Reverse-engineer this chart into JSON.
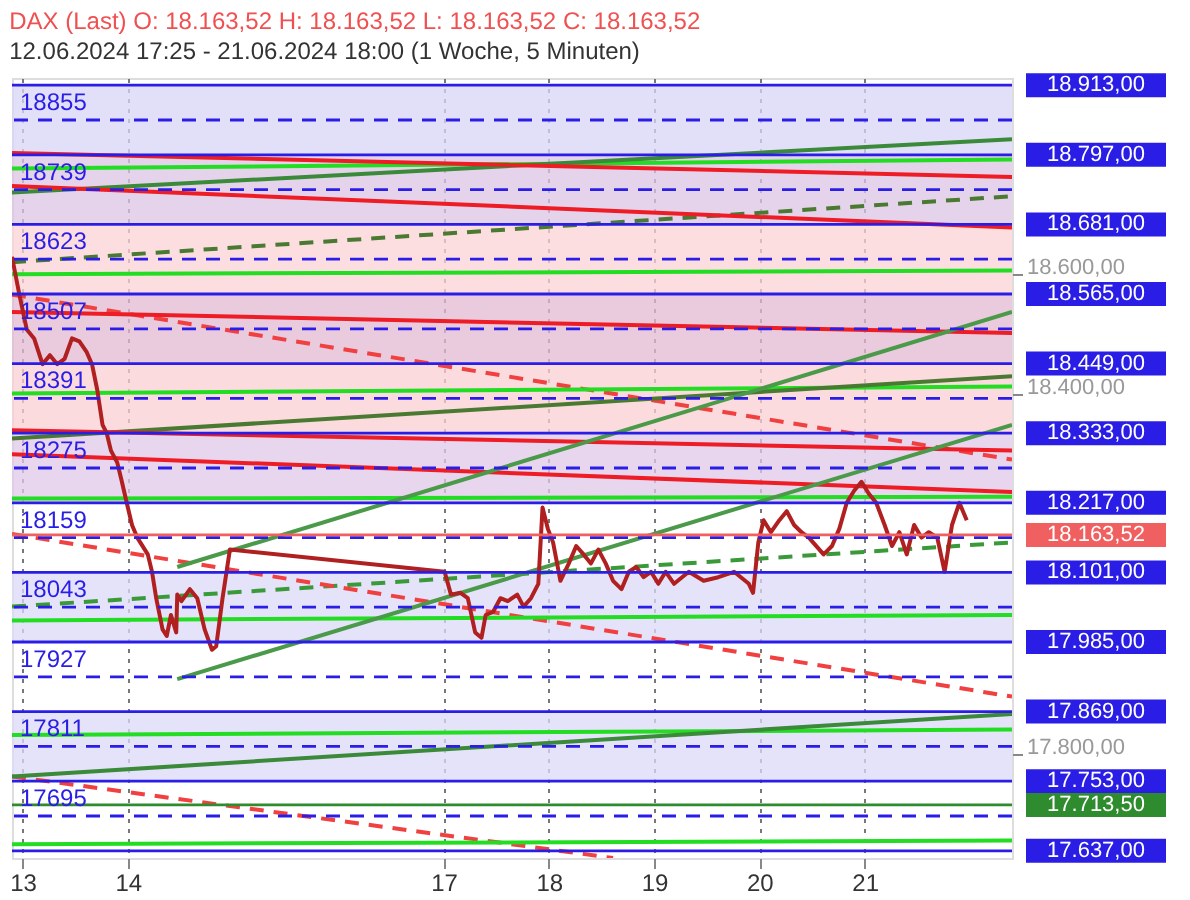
{
  "chart_data": {
    "type": "line",
    "title": "DAX (Last)  O: 18.163,52  H: 18.163,52  L: 18.163,52  C: 18.163,52",
    "subtitle": "12.06.2024 17:25 - 21.06.2024 18:00   (1 Woche, 5 Minuten)",
    "xlim": [
      12.9,
      22.4
    ],
    "xticks": [
      13,
      14,
      17,
      18,
      19,
      20,
      21
    ],
    "ylim": [
      17625,
      18925
    ],
    "yticks": [
      {
        "value": 18600,
        "label": "18.600,00"
      },
      {
        "value": 18400,
        "label": "18.400,00"
      },
      {
        "value": 17800,
        "label": "17.800,00"
      }
    ],
    "grid": "x",
    "bands": [
      {
        "axis": "y",
        "from": 18797,
        "to": 18913,
        "color": "#d8d4f5"
      },
      {
        "axis": "y",
        "from": 18681,
        "to": 18797,
        "color": "#dcc4e6"
      },
      {
        "axis": "y",
        "from": 18565,
        "to": 18681,
        "color": "#fcd3d6"
      },
      {
        "axis": "y",
        "from": 18449,
        "to": 18565,
        "color": "#e3b8d2"
      },
      {
        "axis": "y",
        "from": 18333,
        "to": 18449,
        "color": "#f9cfd2"
      },
      {
        "axis": "y",
        "from": 18217,
        "to": 18333,
        "color": "#e0c8ea"
      },
      {
        "axis": "y",
        "from": 17985,
        "to": 18101,
        "color": "#dcdaf8"
      },
      {
        "axis": "y",
        "from": 17753,
        "to": 17869,
        "color": "#dcdaf8"
      }
    ],
    "ref_lines": [
      {
        "axis": "y",
        "value": 18913,
        "label": "18.913,00",
        "color": "#2a1ee6",
        "line_style": "solid"
      },
      {
        "axis": "y",
        "value": 18855,
        "label": "18855",
        "color": "#2a1ee6",
        "line_style": "dashed"
      },
      {
        "axis": "y",
        "value": 18797,
        "label": "18.797,00",
        "color": "#2a1ee6",
        "line_style": "solid"
      },
      {
        "axis": "y",
        "value": 18739,
        "label": "18739",
        "color": "#2a1ee6",
        "line_style": "dashed"
      },
      {
        "axis": "y",
        "value": 18681,
        "label": "18.681,00",
        "color": "#2a1ee6",
        "line_style": "solid"
      },
      {
        "axis": "y",
        "value": 18623,
        "label": "18623",
        "color": "#2a1ee6",
        "line_style": "dashed"
      },
      {
        "axis": "y",
        "value": 18565,
        "label": "18.565,00",
        "color": "#2a1ee6",
        "line_style": "solid"
      },
      {
        "axis": "y",
        "value": 18507,
        "label": "18507",
        "color": "#2a1ee6",
        "line_style": "dashed"
      },
      {
        "axis": "y",
        "value": 18449,
        "label": "18.449,00",
        "color": "#2a1ee6",
        "line_style": "solid"
      },
      {
        "axis": "y",
        "value": 18391,
        "label": "18391",
        "color": "#2a1ee6",
        "line_style": "dashed"
      },
      {
        "axis": "y",
        "value": 18333,
        "label": "18.333,00",
        "color": "#2a1ee6",
        "line_style": "solid"
      },
      {
        "axis": "y",
        "value": 18275,
        "label": "18275",
        "color": "#2a1ee6",
        "line_style": "dashed"
      },
      {
        "axis": "y",
        "value": 18217,
        "label": "18.217,00",
        "color": "#2a1ee6",
        "line_style": "solid"
      },
      {
        "axis": "y",
        "value": 18163.52,
        "label": "18.163,52",
        "color": "#f06060",
        "line_style": "solid"
      },
      {
        "axis": "y",
        "value": 18159,
        "label": "18159",
        "color": "#2a1ee6",
        "line_style": "dashed"
      },
      {
        "axis": "y",
        "value": 18101,
        "label": "18.101,00",
        "color": "#2a1ee6",
        "line_style": "solid"
      },
      {
        "axis": "y",
        "value": 18043,
        "label": "18043",
        "color": "#2a1ee6",
        "line_style": "dashed"
      },
      {
        "axis": "y",
        "value": 17985,
        "label": "17.985,00",
        "color": "#2a1ee6",
        "line_style": "solid"
      },
      {
        "axis": "y",
        "value": 17927,
        "label": "17927",
        "color": "#2a1ee6",
        "line_style": "dashed"
      },
      {
        "axis": "y",
        "value": 17869,
        "label": "17.869,00",
        "color": "#2a1ee6",
        "line_style": "solid"
      },
      {
        "axis": "y",
        "value": 17811,
        "label": "17811",
        "color": "#2a1ee6",
        "line_style": "dashed"
      },
      {
        "axis": "y",
        "value": 17753,
        "label": "17.753,00",
        "color": "#2a1ee6",
        "line_style": "solid"
      },
      {
        "axis": "y",
        "value": 17713.5,
        "label": "17.713,50",
        "color": "#2e8b2e",
        "line_style": "solid"
      },
      {
        "axis": "y",
        "value": 17695,
        "label": "17695",
        "color": "#2a1ee6",
        "line_style": "dashed"
      },
      {
        "axis": "y",
        "value": 17637,
        "label": "17.637,00",
        "color": "#2a1ee6",
        "line_style": "solid"
      }
    ],
    "series": [
      {
        "color": "#22dd22",
        "x": [
          12.9,
          22.4
        ],
        "values": [
          18774,
          18789
        ]
      },
      {
        "color": "#22dd22",
        "x": [
          12.9,
          22.4
        ],
        "values": [
          18598,
          18604
        ]
      },
      {
        "color": "#22dd22",
        "x": [
          12.9,
          22.4
        ],
        "values": [
          18399,
          18411
        ]
      },
      {
        "color": "#22dd22",
        "x": [
          12.9,
          22.4
        ],
        "values": [
          18224,
          18227
        ]
      },
      {
        "color": "#22dd22",
        "x": [
          12.9,
          22.4
        ],
        "values": [
          18021,
          18030
        ]
      },
      {
        "color": "#22dd22",
        "x": [
          12.9,
          22.4
        ],
        "values": [
          17830,
          17839
        ]
      },
      {
        "color": "#22dd22",
        "x": [
          12.9,
          22.4
        ],
        "values": [
          17648,
          17654
        ]
      },
      {
        "color": "#3a8a3a",
        "x": [
          12.9,
          22.4
        ],
        "values": [
          18734,
          18823
        ]
      },
      {
        "color": "#4a7a32",
        "x": [
          12.9,
          22.4
        ],
        "values": [
          18618,
          18728
        ],
        "line_style": "dashed"
      },
      {
        "color": "#4a7a32",
        "x": [
          12.9,
          22.4
        ],
        "values": [
          18324,
          18428
        ]
      },
      {
        "color": "#3a8a3a",
        "x": [
          12.9,
          22.4
        ],
        "values": [
          17761,
          17865
        ]
      },
      {
        "color": "#3a9a3a",
        "x": [
          12.9,
          22.4
        ],
        "values": [
          18044,
          18151
        ],
        "line_style": "dashed"
      },
      {
        "color": "#ee1c25",
        "x": [
          12.9,
          22.4
        ],
        "values": [
          18800,
          18760
        ]
      },
      {
        "color": "#ee1c25",
        "x": [
          12.9,
          22.4
        ],
        "values": [
          18745,
          18676
        ]
      },
      {
        "color": "#ee1c25",
        "x": [
          12.9,
          22.4
        ],
        "values": [
          18535,
          18500
        ]
      },
      {
        "color": "#ee1c25",
        "x": [
          12.9,
          22.4
        ],
        "values": [
          18338,
          18304
        ]
      },
      {
        "color": "#ee1c25",
        "x": [
          12.9,
          22.4
        ],
        "values": [
          18298,
          18235
        ]
      },
      {
        "color": "#f04040",
        "x": [
          12.9,
          22.4
        ],
        "values": [
          18564,
          18289
        ],
        "line_style": "dashed"
      },
      {
        "color": "#f04040",
        "x": [
          12.9,
          22.4
        ],
        "values": [
          18165,
          17894
        ],
        "line_style": "dashed"
      },
      {
        "color": "#f04040",
        "x": [
          12.9,
          18.61
        ],
        "values": [
          17761,
          17625
        ],
        "line_style": "dashed"
      },
      {
        "color": "#4a9a4a",
        "x": [
          14.47,
          22.4
        ],
        "values": [
          17923,
          18347
        ]
      },
      {
        "color": "#4a9a4a",
        "x": [
          14.47,
          22.4
        ],
        "values": [
          18110,
          18535
        ]
      },
      {
        "color": "#b02020",
        "x": [
          12.9,
          12.97,
          13.04,
          13.11,
          13.19,
          13.26,
          13.33,
          13.4,
          13.47,
          13.54,
          13.61,
          13.66,
          13.71,
          13.76,
          13.8,
          13.84,
          13.9,
          13.94,
          13.99,
          14.04,
          14.09,
          14.19,
          14.23,
          14.27,
          14.33,
          14.37,
          14.41,
          14.46,
          14.47,
          14.51,
          14.59,
          14.66,
          14.73,
          14.8,
          14.84,
          14.9,
          14.97,
          17.01,
          17.07,
          17.16,
          17.23,
          17.3,
          17.36,
          17.4,
          17.47,
          17.54,
          17.61,
          17.7,
          17.76,
          17.83,
          17.9,
          17.94,
          17.99,
          18.04,
          18.11,
          18.19,
          18.26,
          18.33,
          18.4,
          18.47,
          18.54,
          18.61,
          18.69,
          18.76,
          18.83,
          18.9,
          18.97,
          19.04,
          19.11,
          19.19,
          19.33,
          19.47,
          19.61,
          19.76,
          19.9,
          19.94,
          19.99,
          20.04,
          20.11,
          20.19,
          20.26,
          20.33,
          20.4,
          20.47,
          20.61,
          20.69,
          20.76,
          20.83,
          20.9,
          20.97,
          21.04,
          21.11,
          21.19,
          21.26,
          21.33,
          21.4,
          21.47,
          21.54,
          21.61,
          21.69,
          21.76,
          21.83,
          21.9,
          21.97
        ],
        "values": [
          18627,
          18564,
          18506,
          18491,
          18448,
          18463,
          18448,
          18457,
          18491,
          18486,
          18468,
          18448,
          18405,
          18347,
          18333,
          18304,
          18284,
          18255,
          18217,
          18180,
          18159,
          18131,
          18102,
          18058,
          18006,
          17995,
          18030,
          18001,
          18064,
          18053,
          18073,
          18058,
          18006,
          17972,
          17978,
          18058,
          18139,
          18102,
          18064,
          18067,
          18058,
          18001,
          17992,
          18030,
          18035,
          18058,
          18053,
          18064,
          18044,
          18058,
          18082,
          18209,
          18174,
          18151,
          18087,
          18116,
          18145,
          18131,
          18116,
          18139,
          18116,
          18087,
          18073,
          18102,
          18110,
          18093,
          18102,
          18082,
          18102,
          18082,
          18102,
          18087,
          18093,
          18102,
          18082,
          18067,
          18151,
          18188,
          18168,
          18188,
          18203,
          18180,
          18168,
          18159,
          18131,
          18145,
          18174,
          18217,
          18237,
          18252,
          18232,
          18217,
          18180,
          18145,
          18168,
          18131,
          18180,
          18159,
          18168,
          18159,
          18102,
          18180,
          18217,
          18188
        ]
      }
    ]
  }
}
